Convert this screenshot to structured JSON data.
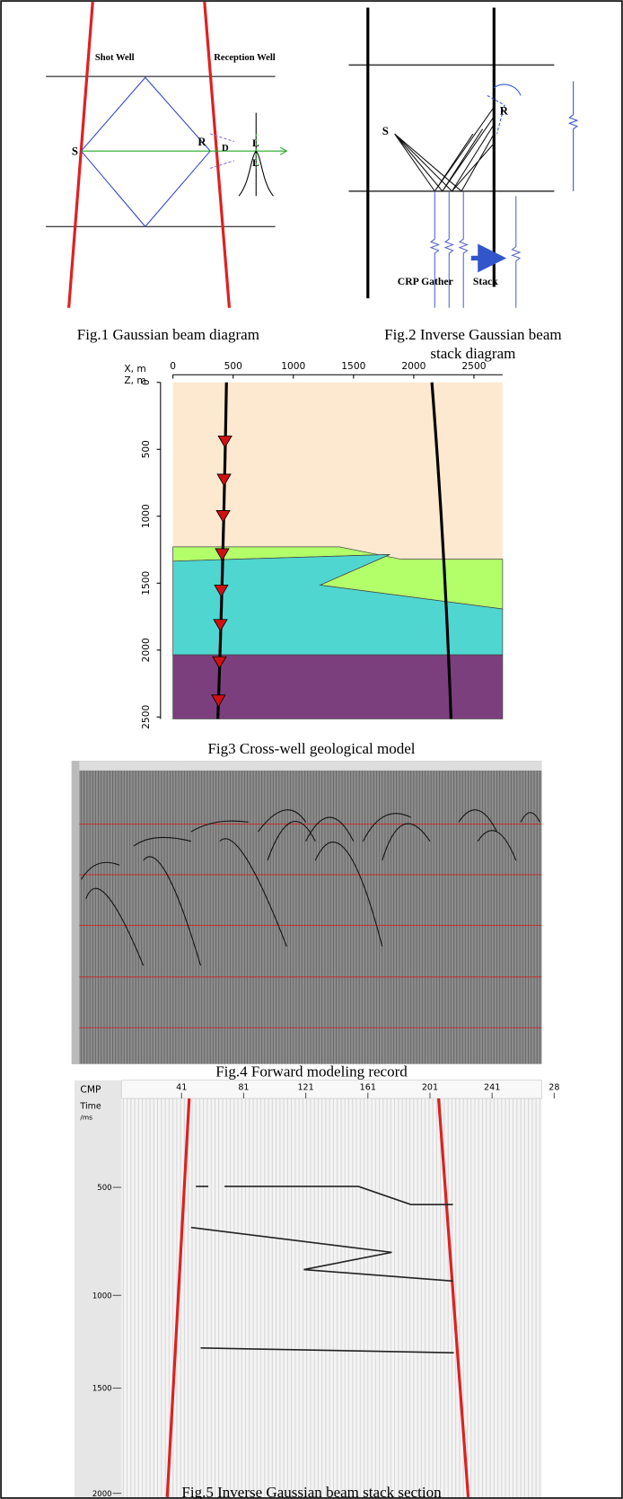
{
  "fig1": {
    "shot_well": "Shot Well",
    "reception_well": "Reception Well",
    "s": "S",
    "r": "R",
    "d": "D",
    "l_top": "L",
    "l_bottom": "L",
    "caption": "Fig.1 Gaussian beam diagram"
  },
  "fig2": {
    "s": "S",
    "r": "R",
    "crp_gather": "CRP Gather",
    "stack": "Stack",
    "caption": [
      "Fig.2 Inverse Gaussian beam",
      "stack diagram"
    ]
  },
  "fig3": {
    "x_axis_label": "X, m",
    "y_axis_label": "Z, m",
    "xticks": [
      "0",
      "500",
      "1000",
      "1500",
      "2000",
      "2500"
    ],
    "yticks": [
      "0",
      "500",
      "1000",
      "1500",
      "2000",
      "2500"
    ],
    "caption": "Fig3 Cross-well geological model"
  },
  "fig4": {
    "caption": "Fig.4 Forward modeling record"
  },
  "fig5": {
    "x_axis_label": "CMP",
    "y_axis_label": [
      "Time",
      "/ms"
    ],
    "xticks": [
      "41",
      "81",
      "121",
      "161",
      "201",
      "241",
      "28"
    ],
    "yticks": [
      "500",
      "1000",
      "1500",
      "2000"
    ],
    "caption": "Fig.5 Inverse Gaussian beam stack section"
  }
}
